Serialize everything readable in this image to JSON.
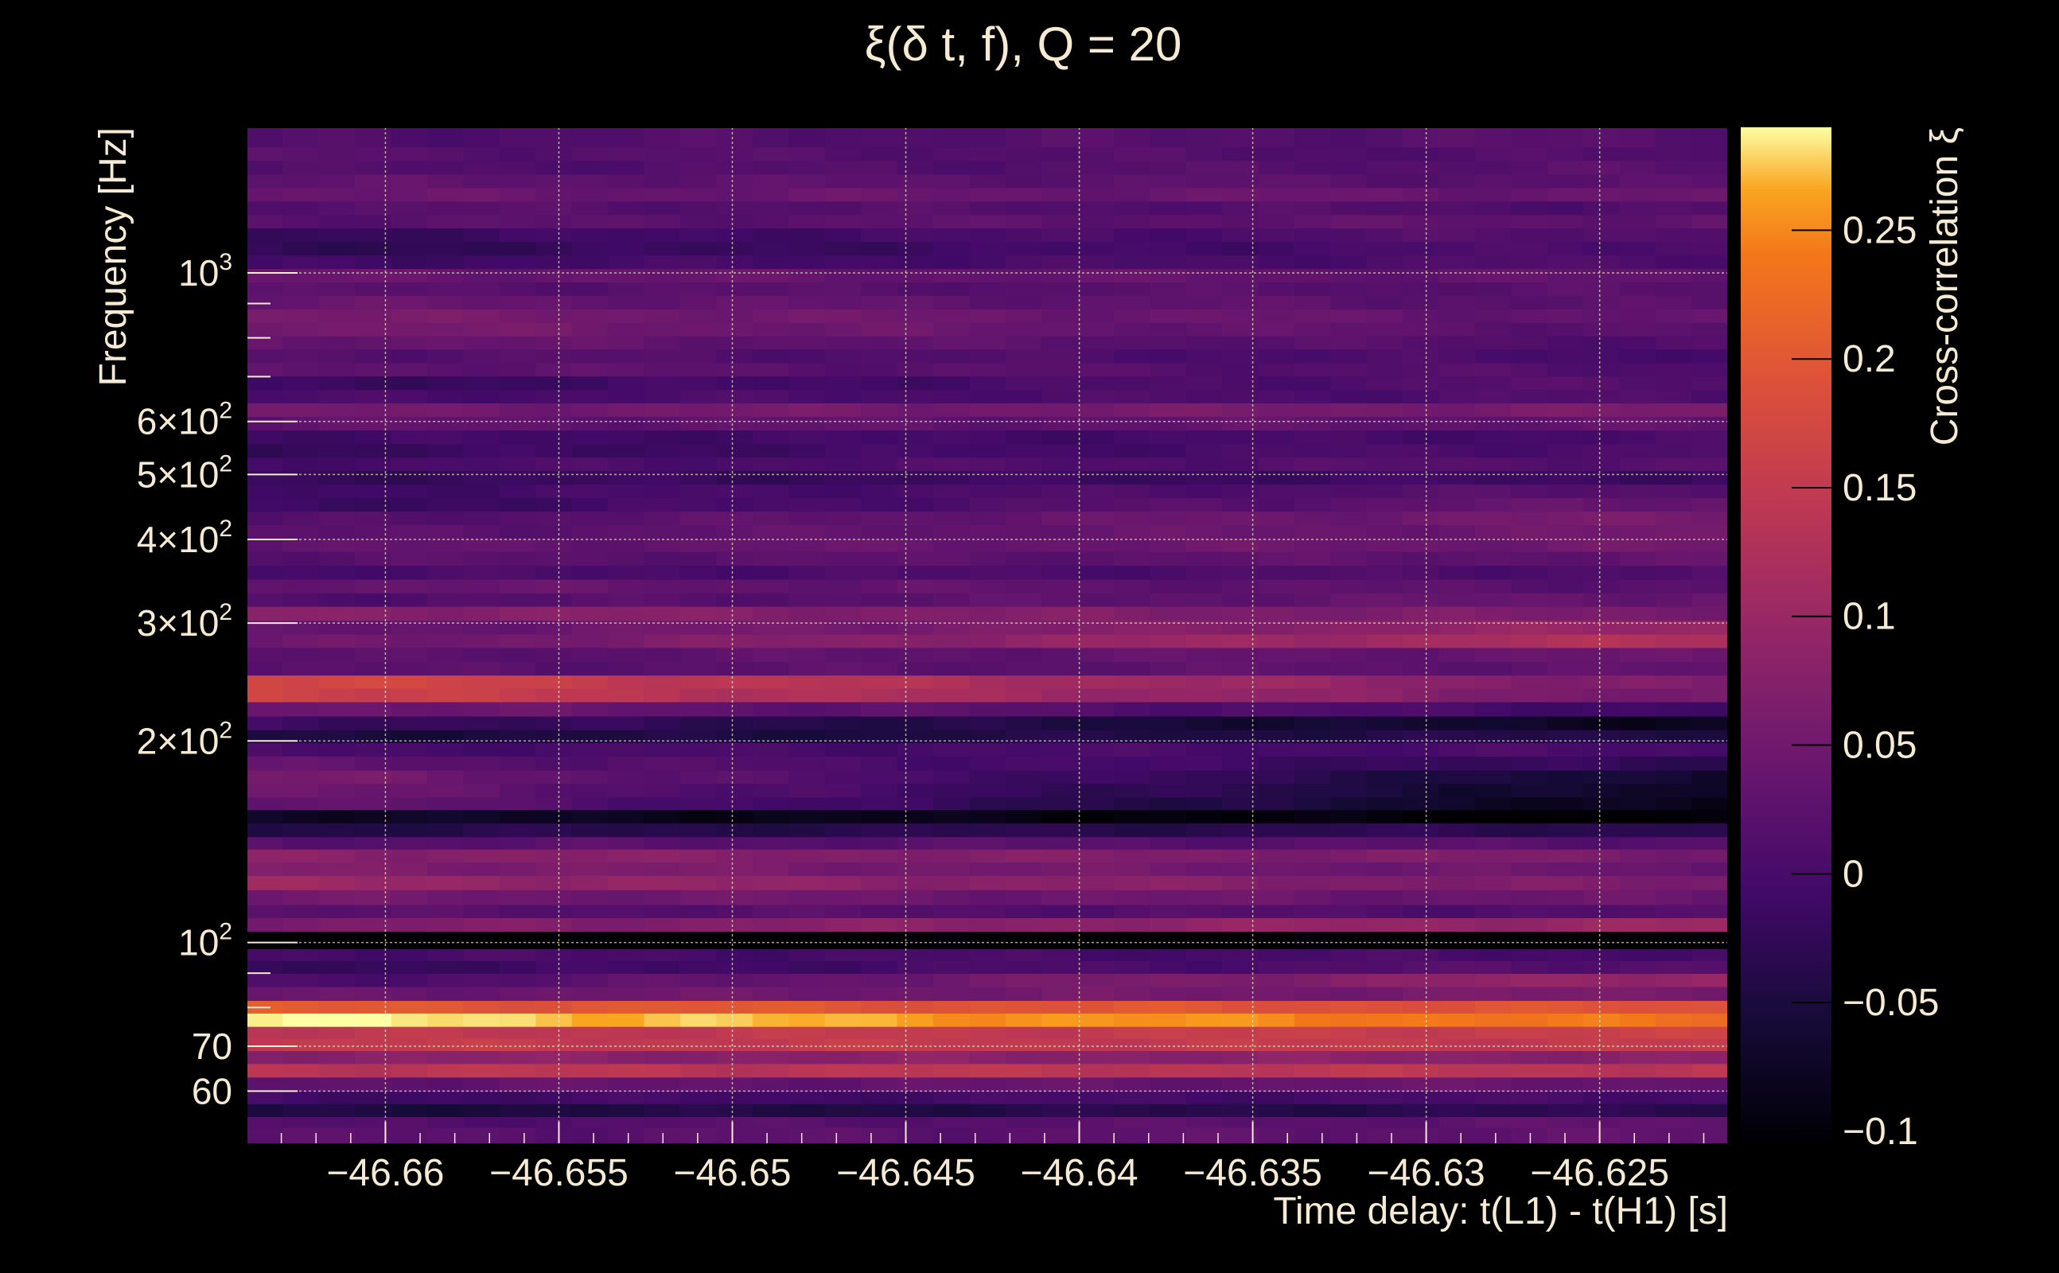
{
  "chart_data": {
    "type": "heatmap",
    "title": "ξ(δ t, f), Q = 20",
    "xlabel": "Time delay: t(L1) - t(H1) [s]",
    "ylabel": "Frequency [Hz]",
    "colorbar_label": "Cross-correlation ξ",
    "x_scale": "linear",
    "y_scale": "log",
    "xlim": [
      -46.664,
      -46.6213
    ],
    "ylim": [
      50,
      1650
    ],
    "grid": true,
    "colormap": "inferno",
    "background_color": "#000000",
    "text_color": "#f6ead2",
    "x_ticks": [
      {
        "value": -46.66,
        "label": "−46.66"
      },
      {
        "value": -46.655,
        "label": "−46.655"
      },
      {
        "value": -46.65,
        "label": "−46.65"
      },
      {
        "value": -46.645,
        "label": "−46.645"
      },
      {
        "value": -46.64,
        "label": "−46.64"
      },
      {
        "value": -46.635,
        "label": "−46.635"
      },
      {
        "value": -46.63,
        "label": "−46.63"
      },
      {
        "value": -46.625,
        "label": "−46.625"
      }
    ],
    "y_ticks": [
      {
        "value": 1000,
        "base": "10",
        "exp": "3"
      },
      {
        "value": 600,
        "base": "6×10",
        "exp": "2"
      },
      {
        "value": 500,
        "base": "5×10",
        "exp": "2"
      },
      {
        "value": 400,
        "base": "4×10",
        "exp": "2"
      },
      {
        "value": 300,
        "base": "3×10",
        "exp": "2"
      },
      {
        "value": 200,
        "base": "2×10",
        "exp": "2"
      },
      {
        "value": 100,
        "base": "10",
        "exp": "2"
      },
      {
        "value": 70,
        "base": "70",
        "exp": ""
      },
      {
        "value": 60,
        "base": "60",
        "exp": ""
      }
    ],
    "colorbar": {
      "range": [
        -0.105,
        0.29
      ],
      "ticks": [
        {
          "value": 0.25,
          "label": "0.25"
        },
        {
          "value": 0.2,
          "label": "0.2"
        },
        {
          "value": 0.15,
          "label": "0.15"
        },
        {
          "value": 0.1,
          "label": "0.1"
        },
        {
          "value": 0.05,
          "label": "0.05"
        },
        {
          "value": 0,
          "label": "0"
        },
        {
          "value": -0.05,
          "label": "−0.05"
        },
        {
          "value": -0.1,
          "label": "−0.1"
        }
      ]
    },
    "rows": [
      {
        "f_low": 50.0,
        "f_high": 53.0,
        "start": 0.02,
        "end": 0.03
      },
      {
        "f_low": 53.0,
        "f_high": 55.0,
        "start": 0.01,
        "end": 0.03
      },
      {
        "f_low": 55.0,
        "f_high": 57.5,
        "start": -0.05,
        "end": -0.03
      },
      {
        "f_low": 57.5,
        "f_high": 60.0,
        "start": -0.01,
        "end": 0.0
      },
      {
        "f_low": 60.0,
        "f_high": 63.0,
        "start": 0.03,
        "end": 0.04
      },
      {
        "f_low": 63.0,
        "f_high": 66.0,
        "start": 0.14,
        "end": 0.14
      },
      {
        "f_low": 66.0,
        "f_high": 69.0,
        "start": 0.08,
        "end": 0.08
      },
      {
        "f_low": 69.0,
        "f_high": 72.0,
        "start": 0.15,
        "end": 0.15
      },
      {
        "f_low": 72.0,
        "f_high": 75.0,
        "start": 0.14,
        "end": 0.16
      },
      {
        "f_low": 75.0,
        "f_high": 78.5,
        "start": 0.29,
        "end": 0.23
      },
      {
        "f_low": 78.5,
        "f_high": 82.0,
        "start": 0.2,
        "end": 0.19
      },
      {
        "f_low": 82.0,
        "f_high": 86.0,
        "start": 0.04,
        "end": 0.06
      },
      {
        "f_low": 86.0,
        "f_high": 90.0,
        "start": 0.0,
        "end": 0.1
      },
      {
        "f_low": 90.0,
        "f_high": 94.0,
        "start": -0.02,
        "end": 0.02
      },
      {
        "f_low": 94.0,
        "f_high": 98.0,
        "start": 0.0,
        "end": 0.0
      },
      {
        "f_low": 98.0,
        "f_high": 104.0,
        "start": -0.11,
        "end": -0.11
      },
      {
        "f_low": 104.0,
        "f_high": 109.0,
        "start": 0.06,
        "end": 0.1
      },
      {
        "f_low": 109.0,
        "f_high": 114.0,
        "start": 0.02,
        "end": 0.01
      },
      {
        "f_low": 114.0,
        "f_high": 120.0,
        "start": 0.05,
        "end": 0.04
      },
      {
        "f_low": 120.0,
        "f_high": 126.0,
        "start": 0.1,
        "end": 0.06
      },
      {
        "f_low": 126.0,
        "f_high": 132.0,
        "start": 0.07,
        "end": 0.04
      },
      {
        "f_low": 132.0,
        "f_high": 138.0,
        "start": 0.08,
        "end": 0.06
      },
      {
        "f_low": 138.0,
        "f_high": 144.0,
        "start": 0.02,
        "end": 0.02
      },
      {
        "f_low": 144.0,
        "f_high": 151.0,
        "start": -0.04,
        "end": -0.03
      },
      {
        "f_low": 151.0,
        "f_high": 158.0,
        "start": -0.07,
        "end": -0.11
      },
      {
        "f_low": 158.0,
        "f_high": 165.0,
        "start": 0.04,
        "end": -0.09
      },
      {
        "f_low": 165.0,
        "f_high": 173.0,
        "start": 0.05,
        "end": -0.08
      },
      {
        "f_low": 173.0,
        "f_high": 181.0,
        "start": 0.06,
        "end": -0.07
      },
      {
        "f_low": 181.0,
        "f_high": 190.0,
        "start": 0.03,
        "end": -0.03
      },
      {
        "f_low": 190.0,
        "f_high": 199.0,
        "start": 0.0,
        "end": 0.0
      },
      {
        "f_low": 199.0,
        "f_high": 208.0,
        "start": -0.05,
        "end": -0.04
      },
      {
        "f_low": 208.0,
        "f_high": 218.0,
        "start": -0.01,
        "end": -0.08
      },
      {
        "f_low": 218.0,
        "f_high": 229.0,
        "start": 0.05,
        "end": -0.01
      },
      {
        "f_low": 229.0,
        "f_high": 240.0,
        "start": 0.17,
        "end": 0.05
      },
      {
        "f_low": 240.0,
        "f_high": 251.0,
        "start": 0.18,
        "end": 0.06
      },
      {
        "f_low": 251.0,
        "f_high": 263.0,
        "start": 0.02,
        "end": 0.03
      },
      {
        "f_low": 263.0,
        "f_high": 276.0,
        "start": 0.02,
        "end": 0.04
      },
      {
        "f_low": 276.0,
        "f_high": 289.0,
        "start": 0.04,
        "end": 0.13
      },
      {
        "f_low": 289.0,
        "f_high": 303.0,
        "start": 0.03,
        "end": 0.1
      },
      {
        "f_low": 303.0,
        "f_high": 318.0,
        "start": 0.08,
        "end": 0.06
      },
      {
        "f_low": 318.0,
        "f_high": 333.0,
        "start": 0.01,
        "end": 0.04
      },
      {
        "f_low": 333.0,
        "f_high": 349.0,
        "start": 0.04,
        "end": 0.02
      },
      {
        "f_low": 349.0,
        "f_high": 366.0,
        "start": 0.0,
        "end": 0.01
      },
      {
        "f_low": 366.0,
        "f_high": 384.0,
        "start": 0.02,
        "end": 0.03
      },
      {
        "f_low": 384.0,
        "f_high": 402.0,
        "start": 0.03,
        "end": 0.05
      },
      {
        "f_low": 402.0,
        "f_high": 421.0,
        "start": 0.02,
        "end": 0.05
      },
      {
        "f_low": 421.0,
        "f_high": 441.0,
        "start": 0.01,
        "end": 0.06
      },
      {
        "f_low": 441.0,
        "f_high": 462.0,
        "start": -0.02,
        "end": 0.04
      },
      {
        "f_low": 462.0,
        "f_high": 484.0,
        "start": -0.01,
        "end": 0.02
      },
      {
        "f_low": 484.0,
        "f_high": 507.0,
        "start": -0.02,
        "end": -0.01
      },
      {
        "f_low": 507.0,
        "f_high": 531.0,
        "start": 0.0,
        "end": 0.02
      },
      {
        "f_low": 531.0,
        "f_high": 556.0,
        "start": -0.02,
        "end": 0.01
      },
      {
        "f_low": 556.0,
        "f_high": 583.0,
        "start": -0.01,
        "end": 0.0
      },
      {
        "f_low": 583.0,
        "f_high": 611.0,
        "start": 0.03,
        "end": 0.03
      },
      {
        "f_low": 611.0,
        "f_high": 640.0,
        "start": 0.05,
        "end": 0.06
      },
      {
        "f_low": 640.0,
        "f_high": 670.0,
        "start": 0.0,
        "end": 0.01
      },
      {
        "f_low": 670.0,
        "f_high": 702.0,
        "start": -0.02,
        "end": 0.02
      },
      {
        "f_low": 702.0,
        "f_high": 735.0,
        "start": 0.03,
        "end": 0.01
      },
      {
        "f_low": 735.0,
        "f_high": 770.0,
        "start": 0.02,
        "end": 0.0
      },
      {
        "f_low": 770.0,
        "f_high": 806.0,
        "start": 0.04,
        "end": 0.01
      },
      {
        "f_low": 806.0,
        "f_high": 844.0,
        "start": 0.06,
        "end": 0.02
      },
      {
        "f_low": 844.0,
        "f_high": 884.0,
        "start": 0.06,
        "end": 0.03
      },
      {
        "f_low": 884.0,
        "f_high": 926.0,
        "start": 0.04,
        "end": 0.02
      },
      {
        "f_low": 926.0,
        "f_high": 970.0,
        "start": 0.02,
        "end": 0.02
      },
      {
        "f_low": 970.0,
        "f_high": 1016.0,
        "start": 0.04,
        "end": 0.03
      },
      {
        "f_low": 1016.0,
        "f_high": 1064.0,
        "start": -0.01,
        "end": 0.01
      },
      {
        "f_low": 1064.0,
        "f_high": 1115.0,
        "start": -0.03,
        "end": 0.01
      },
      {
        "f_low": 1115.0,
        "f_high": 1168.0,
        "start": -0.02,
        "end": 0.02
      },
      {
        "f_low": 1168.0,
        "f_high": 1223.0,
        "start": 0.02,
        "end": 0.03
      },
      {
        "f_low": 1223.0,
        "f_high": 1281.0,
        "start": 0.02,
        "end": 0.01
      },
      {
        "f_low": 1281.0,
        "f_high": 1342.0,
        "start": 0.04,
        "end": 0.04
      },
      {
        "f_low": 1342.0,
        "f_high": 1406.0,
        "start": 0.03,
        "end": 0.02
      },
      {
        "f_low": 1406.0,
        "f_high": 1473.0,
        "start": 0.01,
        "end": 0.02
      },
      {
        "f_low": 1473.0,
        "f_high": 1543.0,
        "start": 0.02,
        "end": 0.01
      },
      {
        "f_low": 1543.0,
        "f_high": 1650.0,
        "start": 0.01,
        "end": 0.02
      }
    ]
  }
}
